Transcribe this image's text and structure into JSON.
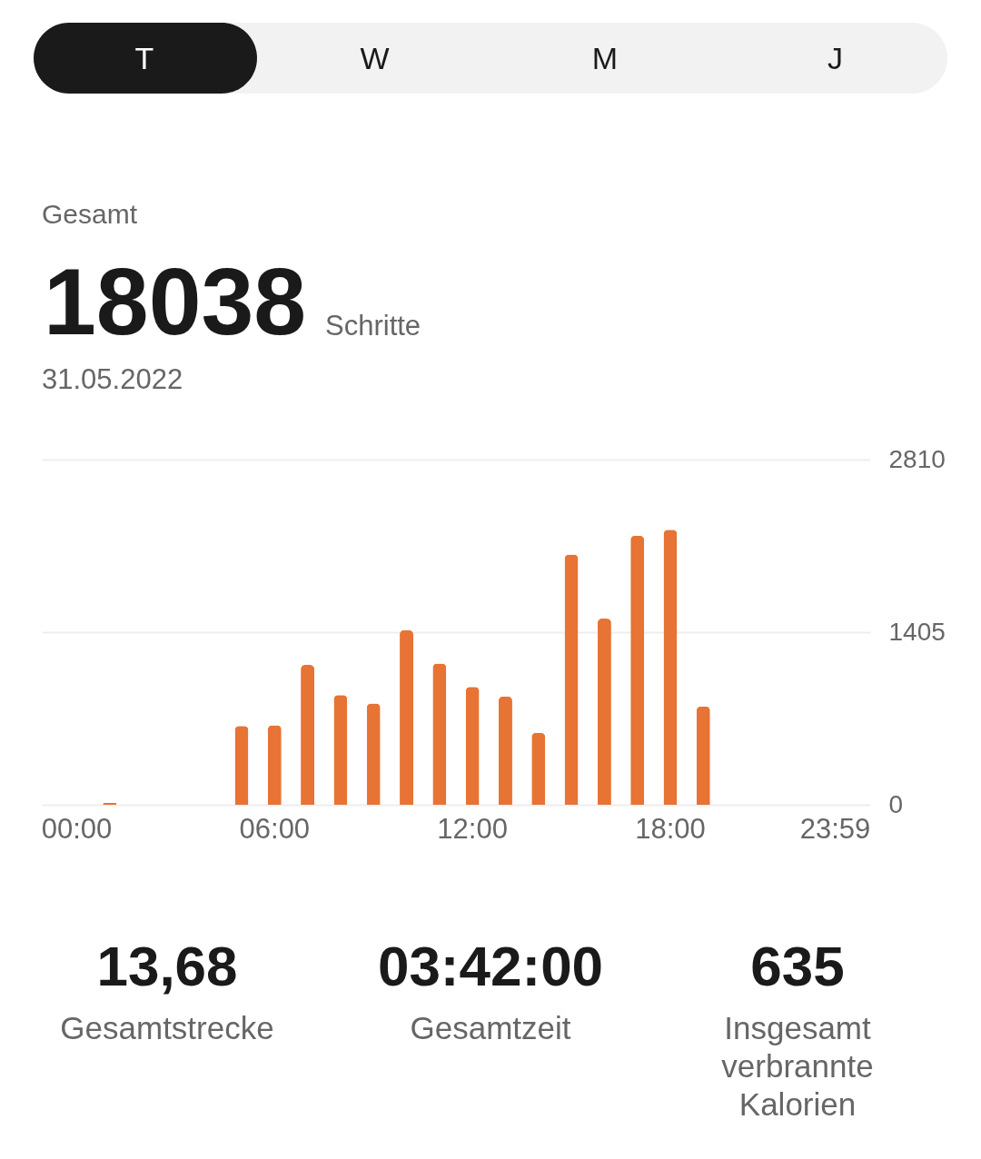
{
  "chart_data": [
    {
      "type": "other",
      "annotations": [
        "T",
        "W",
        "M",
        "J"
      ]
    },
    {
      "type": "bar",
      "title": "Gesamt",
      "annotations": [
        "18038",
        "Schritte",
        "31.05.2022"
      ],
      "categories": [
        "00:00",
        null,
        null,
        null,
        null,
        null,
        "06:00",
        null,
        null,
        null,
        null,
        null,
        "12:00",
        null,
        null,
        null,
        null,
        null,
        "18:00",
        null,
        null,
        null,
        null,
        "23:59"
      ],
      "values": [
        null,
        15,
        null,
        null,
        null,
        642,
        647,
        1139,
        893,
        824,
        1422,
        1149,
        960,
        881,
        586,
        2037,
        1516,
        2190,
        2239,
        800,
        null,
        null,
        null,
        null
      ],
      "color": "#e77334",
      "ylim": [
        0,
        2810
      ],
      "yticks": [
        0,
        1405,
        2810
      ],
      "grid": "y"
    },
    {
      "type": "other",
      "annotations": [
        "13,68",
        "Gesamtstrecke",
        "03:42:00",
        "Gesamtzeit",
        "635",
        "Insgesamt verbrannte Kalorien"
      ]
    }
  ]
}
